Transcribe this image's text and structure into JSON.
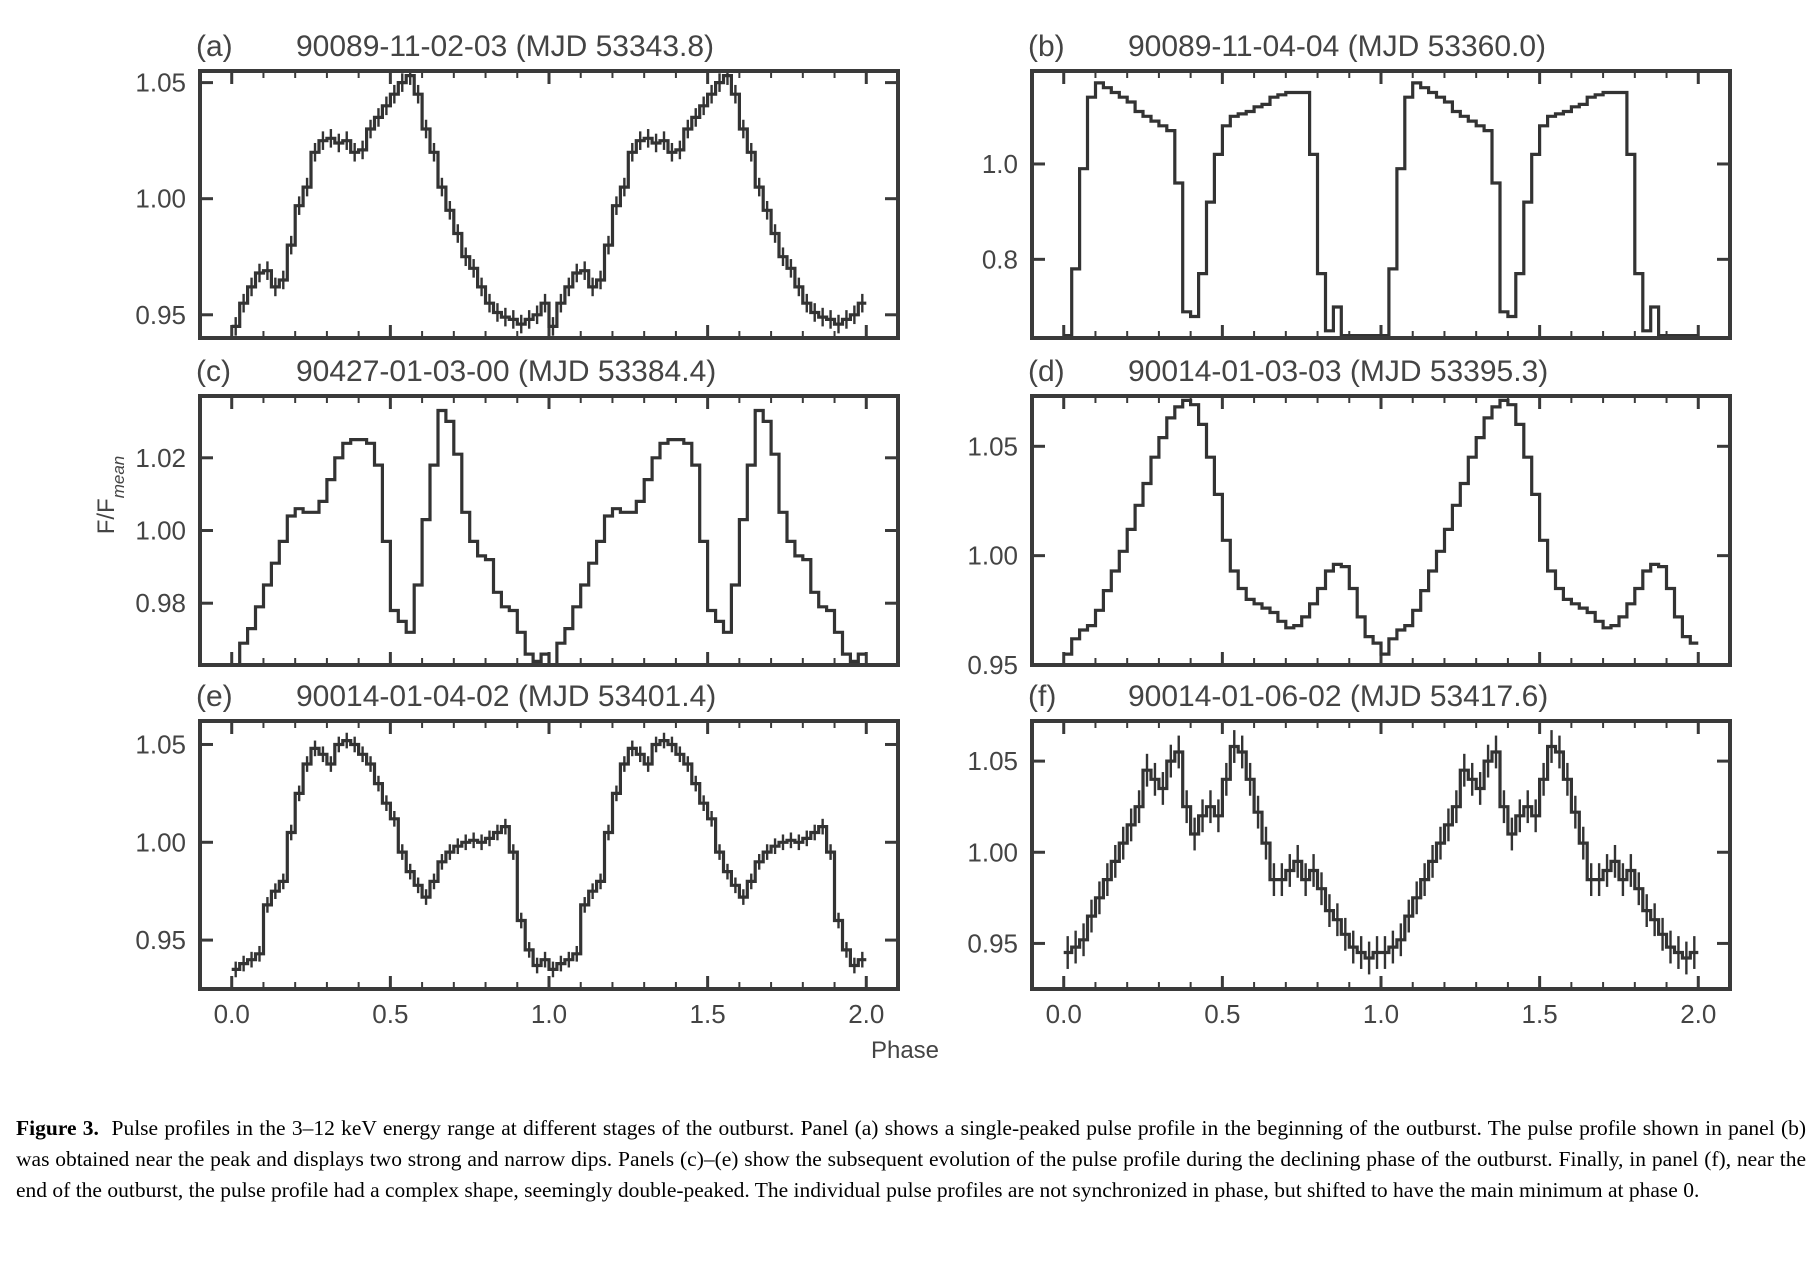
{
  "figure": {
    "ylabel_base": "F/F",
    "ylabel_sub": "mean",
    "xlabel": "Phase",
    "xticks": [
      "0.0",
      "0.5",
      "1.0",
      "1.5",
      "2.0"
    ],
    "colors": {
      "line": "#333333",
      "axes": "#3a3a3a",
      "text": "#444444"
    }
  },
  "caption": {
    "label": "Figure 3.",
    "text": "Pulse profiles in the 3–12 keV energy range at different stages of the outburst. Panel (a) shows a single-peaked pulse profile in the beginning of the outburst. The pulse profile shown in panel (b) was obtained near the peak and displays two strong and narrow dips. Panels (c)–(e) show the subsequent evolution of the pulse profile during the declining phase of the outburst. Finally, in panel (f), near the end of the outburst, the pulse profile had a complex shape, seemingly double-peaked. The individual pulse profiles are not synchronized in phase, but shifted to have the main minimum at phase 0."
  },
  "chart_data": [
    {
      "type": "line",
      "panel": "(a)",
      "title": "90089-11-02-03 (MJD 53343.8)",
      "xlabel": "Phase",
      "ylabel": "F/Fmean",
      "xlim": [
        -0.1,
        2.1
      ],
      "ylim": [
        0.94,
        1.055
      ],
      "yticks": [
        0.95,
        1.0,
        1.05
      ],
      "ytick_labels": [
        "0.95",
        "1.00",
        "1.05"
      ],
      "error": 0.004,
      "x": [
        0.0,
        0.025,
        0.05,
        0.075,
        0.1,
        0.125,
        0.15,
        0.175,
        0.2,
        0.225,
        0.25,
        0.275,
        0.3,
        0.325,
        0.35,
        0.375,
        0.4,
        0.425,
        0.45,
        0.475,
        0.5,
        0.525,
        0.55,
        0.575,
        0.6,
        0.625,
        0.65,
        0.675,
        0.7,
        0.725,
        0.75,
        0.775,
        0.8,
        0.825,
        0.85,
        0.875,
        0.9,
        0.925,
        0.95,
        0.975
      ],
      "y": [
        0.945,
        0.955,
        0.962,
        0.968,
        0.969,
        0.962,
        0.965,
        0.98,
        0.997,
        1.005,
        1.02,
        1.025,
        1.026,
        1.024,
        1.025,
        1.02,
        1.021,
        1.03,
        1.035,
        1.04,
        1.045,
        1.05,
        1.053,
        1.045,
        1.03,
        1.02,
        1.005,
        0.995,
        0.985,
        0.975,
        0.97,
        0.962,
        0.955,
        0.951,
        0.949,
        0.948,
        0.946,
        0.948,
        0.95,
        0.955
      ]
    },
    {
      "type": "line",
      "panel": "(b)",
      "title": "90089-11-04-04 (MJD 53360.0)",
      "xlabel": "Phase",
      "ylabel": "F/Fmean",
      "xlim": [
        -0.1,
        2.1
      ],
      "ylim": [
        0.635,
        1.195
      ],
      "yticks": [
        0.8,
        1.0
      ],
      "ytick_labels": [
        "0.8",
        "1.0"
      ],
      "error": 0,
      "x": [
        0.0,
        0.025,
        0.05,
        0.075,
        0.1,
        0.125,
        0.15,
        0.175,
        0.2,
        0.225,
        0.25,
        0.275,
        0.3,
        0.325,
        0.35,
        0.375,
        0.4,
        0.425,
        0.45,
        0.475,
        0.5,
        0.525,
        0.55,
        0.575,
        0.6,
        0.625,
        0.65,
        0.675,
        0.7,
        0.725,
        0.75,
        0.775,
        0.8,
        0.825,
        0.85,
        0.875,
        0.9,
        0.925,
        0.95,
        0.975
      ],
      "y": [
        0.64,
        0.78,
        0.99,
        1.14,
        1.17,
        1.16,
        1.15,
        1.14,
        1.13,
        1.11,
        1.1,
        1.09,
        1.08,
        1.07,
        0.96,
        0.69,
        0.68,
        0.77,
        0.92,
        1.02,
        1.08,
        1.1,
        1.105,
        1.11,
        1.12,
        1.125,
        1.14,
        1.145,
        1.15,
        1.15,
        1.15,
        1.02,
        0.77,
        0.65,
        0.7,
        0.64,
        0.64,
        0.64,
        0.64,
        0.64
      ]
    },
    {
      "type": "line",
      "panel": "(c)",
      "title": "90427-01-03-00 (MJD 53384.4)",
      "xlabel": "Phase",
      "ylabel": "F/Fmean",
      "xlim": [
        -0.1,
        2.1
      ],
      "ylim": [
        0.963,
        1.037
      ],
      "yticks": [
        0.98,
        1.0,
        1.02
      ],
      "ytick_labels": [
        "0.98",
        "1.00",
        "1.02"
      ],
      "error": 0,
      "x": [
        0.0,
        0.025,
        0.05,
        0.075,
        0.1,
        0.125,
        0.15,
        0.175,
        0.2,
        0.225,
        0.25,
        0.275,
        0.3,
        0.325,
        0.35,
        0.375,
        0.4,
        0.425,
        0.45,
        0.475,
        0.5,
        0.525,
        0.55,
        0.575,
        0.6,
        0.625,
        0.65,
        0.675,
        0.7,
        0.725,
        0.75,
        0.775,
        0.8,
        0.825,
        0.85,
        0.875,
        0.9,
        0.925,
        0.95,
        0.975
      ],
      "y": [
        0.963,
        0.969,
        0.973,
        0.979,
        0.985,
        0.991,
        0.997,
        1.004,
        1.006,
        1.005,
        1.005,
        1.008,
        1.014,
        1.02,
        1.024,
        1.025,
        1.025,
        1.024,
        1.018,
        0.997,
        0.978,
        0.975,
        0.972,
        0.985,
        1.003,
        1.018,
        1.033,
        1.03,
        1.021,
        1.005,
        0.997,
        0.993,
        0.992,
        0.983,
        0.979,
        0.978,
        0.972,
        0.966,
        0.964,
        0.966
      ]
    },
    {
      "type": "line",
      "panel": "(d)",
      "title": "90014-01-03-03 (MJD 53395.3)",
      "xlabel": "Phase",
      "ylabel": "F/Fmean",
      "xlim": [
        -0.1,
        2.1
      ],
      "ylim": [
        0.95,
        1.073
      ],
      "yticks": [
        0.95,
        1.0,
        1.05
      ],
      "ytick_labels": [
        "0.95",
        "1.00",
        "1.05"
      ],
      "error": 0,
      "x": [
        0.0,
        0.025,
        0.05,
        0.075,
        0.1,
        0.125,
        0.15,
        0.175,
        0.2,
        0.225,
        0.25,
        0.275,
        0.3,
        0.325,
        0.35,
        0.375,
        0.4,
        0.425,
        0.45,
        0.475,
        0.5,
        0.525,
        0.55,
        0.575,
        0.6,
        0.625,
        0.65,
        0.675,
        0.7,
        0.725,
        0.75,
        0.775,
        0.8,
        0.825,
        0.85,
        0.875,
        0.9,
        0.925,
        0.95,
        0.975
      ],
      "y": [
        0.955,
        0.962,
        0.966,
        0.968,
        0.975,
        0.984,
        0.993,
        1.002,
        1.012,
        1.023,
        1.033,
        1.045,
        1.054,
        1.063,
        1.068,
        1.071,
        1.069,
        1.06,
        1.045,
        1.028,
        1.007,
        0.993,
        0.985,
        0.98,
        0.978,
        0.976,
        0.974,
        0.97,
        0.967,
        0.968,
        0.972,
        0.978,
        0.985,
        0.993,
        0.996,
        0.995,
        0.985,
        0.972,
        0.963,
        0.96
      ]
    },
    {
      "type": "line",
      "panel": "(e)",
      "title": "90014-01-04-02 (MJD 53401.4)",
      "xlabel": "Phase",
      "ylabel": "F/Fmean",
      "xlim": [
        -0.1,
        2.1
      ],
      "ylim": [
        0.925,
        1.062
      ],
      "yticks": [
        0.95,
        1.0,
        1.05
      ],
      "ytick_labels": [
        "0.95",
        "1.00",
        "1.05"
      ],
      "error": 0.004,
      "x": [
        0.0,
        0.025,
        0.05,
        0.075,
        0.1,
        0.125,
        0.15,
        0.175,
        0.2,
        0.225,
        0.25,
        0.275,
        0.3,
        0.325,
        0.35,
        0.375,
        0.4,
        0.425,
        0.45,
        0.475,
        0.5,
        0.525,
        0.55,
        0.575,
        0.6,
        0.625,
        0.65,
        0.675,
        0.7,
        0.725,
        0.75,
        0.775,
        0.8,
        0.825,
        0.85,
        0.875,
        0.9,
        0.925,
        0.95,
        0.975
      ],
      "y": [
        0.935,
        0.938,
        0.94,
        0.943,
        0.968,
        0.975,
        0.98,
        1.005,
        1.025,
        1.04,
        1.048,
        1.045,
        1.04,
        1.05,
        1.052,
        1.05,
        1.045,
        1.04,
        1.03,
        1.02,
        1.012,
        0.995,
        0.985,
        0.978,
        0.972,
        0.98,
        0.99,
        0.995,
        0.998,
        1.0,
        1.001,
        1.0,
        1.002,
        1.005,
        1.008,
        0.995,
        0.96,
        0.945,
        0.937,
        0.94
      ]
    },
    {
      "type": "line",
      "panel": "(f)",
      "title": "90014-01-06-02 (MJD 53417.6)",
      "xlabel": "Phase",
      "ylabel": "F/Fmean",
      "xlim": [
        -0.1,
        2.1
      ],
      "ylim": [
        0.925,
        1.072
      ],
      "yticks": [
        0.95,
        1.0,
        1.05
      ],
      "ytick_labels": [
        "0.95",
        "1.00",
        "1.05"
      ],
      "error": 0.009,
      "x": [
        0.0,
        0.025,
        0.05,
        0.075,
        0.1,
        0.125,
        0.15,
        0.175,
        0.2,
        0.225,
        0.25,
        0.275,
        0.3,
        0.325,
        0.35,
        0.375,
        0.4,
        0.425,
        0.45,
        0.475,
        0.5,
        0.525,
        0.55,
        0.575,
        0.6,
        0.625,
        0.65,
        0.675,
        0.7,
        0.725,
        0.75,
        0.775,
        0.8,
        0.825,
        0.85,
        0.875,
        0.9,
        0.925,
        0.95,
        0.975
      ],
      "y": [
        0.945,
        0.948,
        0.952,
        0.965,
        0.975,
        0.985,
        0.995,
        1.005,
        1.015,
        1.025,
        1.045,
        1.04,
        1.035,
        1.05,
        1.055,
        1.025,
        1.01,
        1.02,
        1.025,
        1.02,
        1.04,
        1.058,
        1.055,
        1.04,
        1.022,
        1.005,
        0.985,
        0.985,
        0.99,
        0.995,
        0.985,
        0.99,
        0.98,
        0.968,
        0.963,
        0.955,
        0.948,
        0.945,
        0.942,
        0.945
      ]
    }
  ]
}
